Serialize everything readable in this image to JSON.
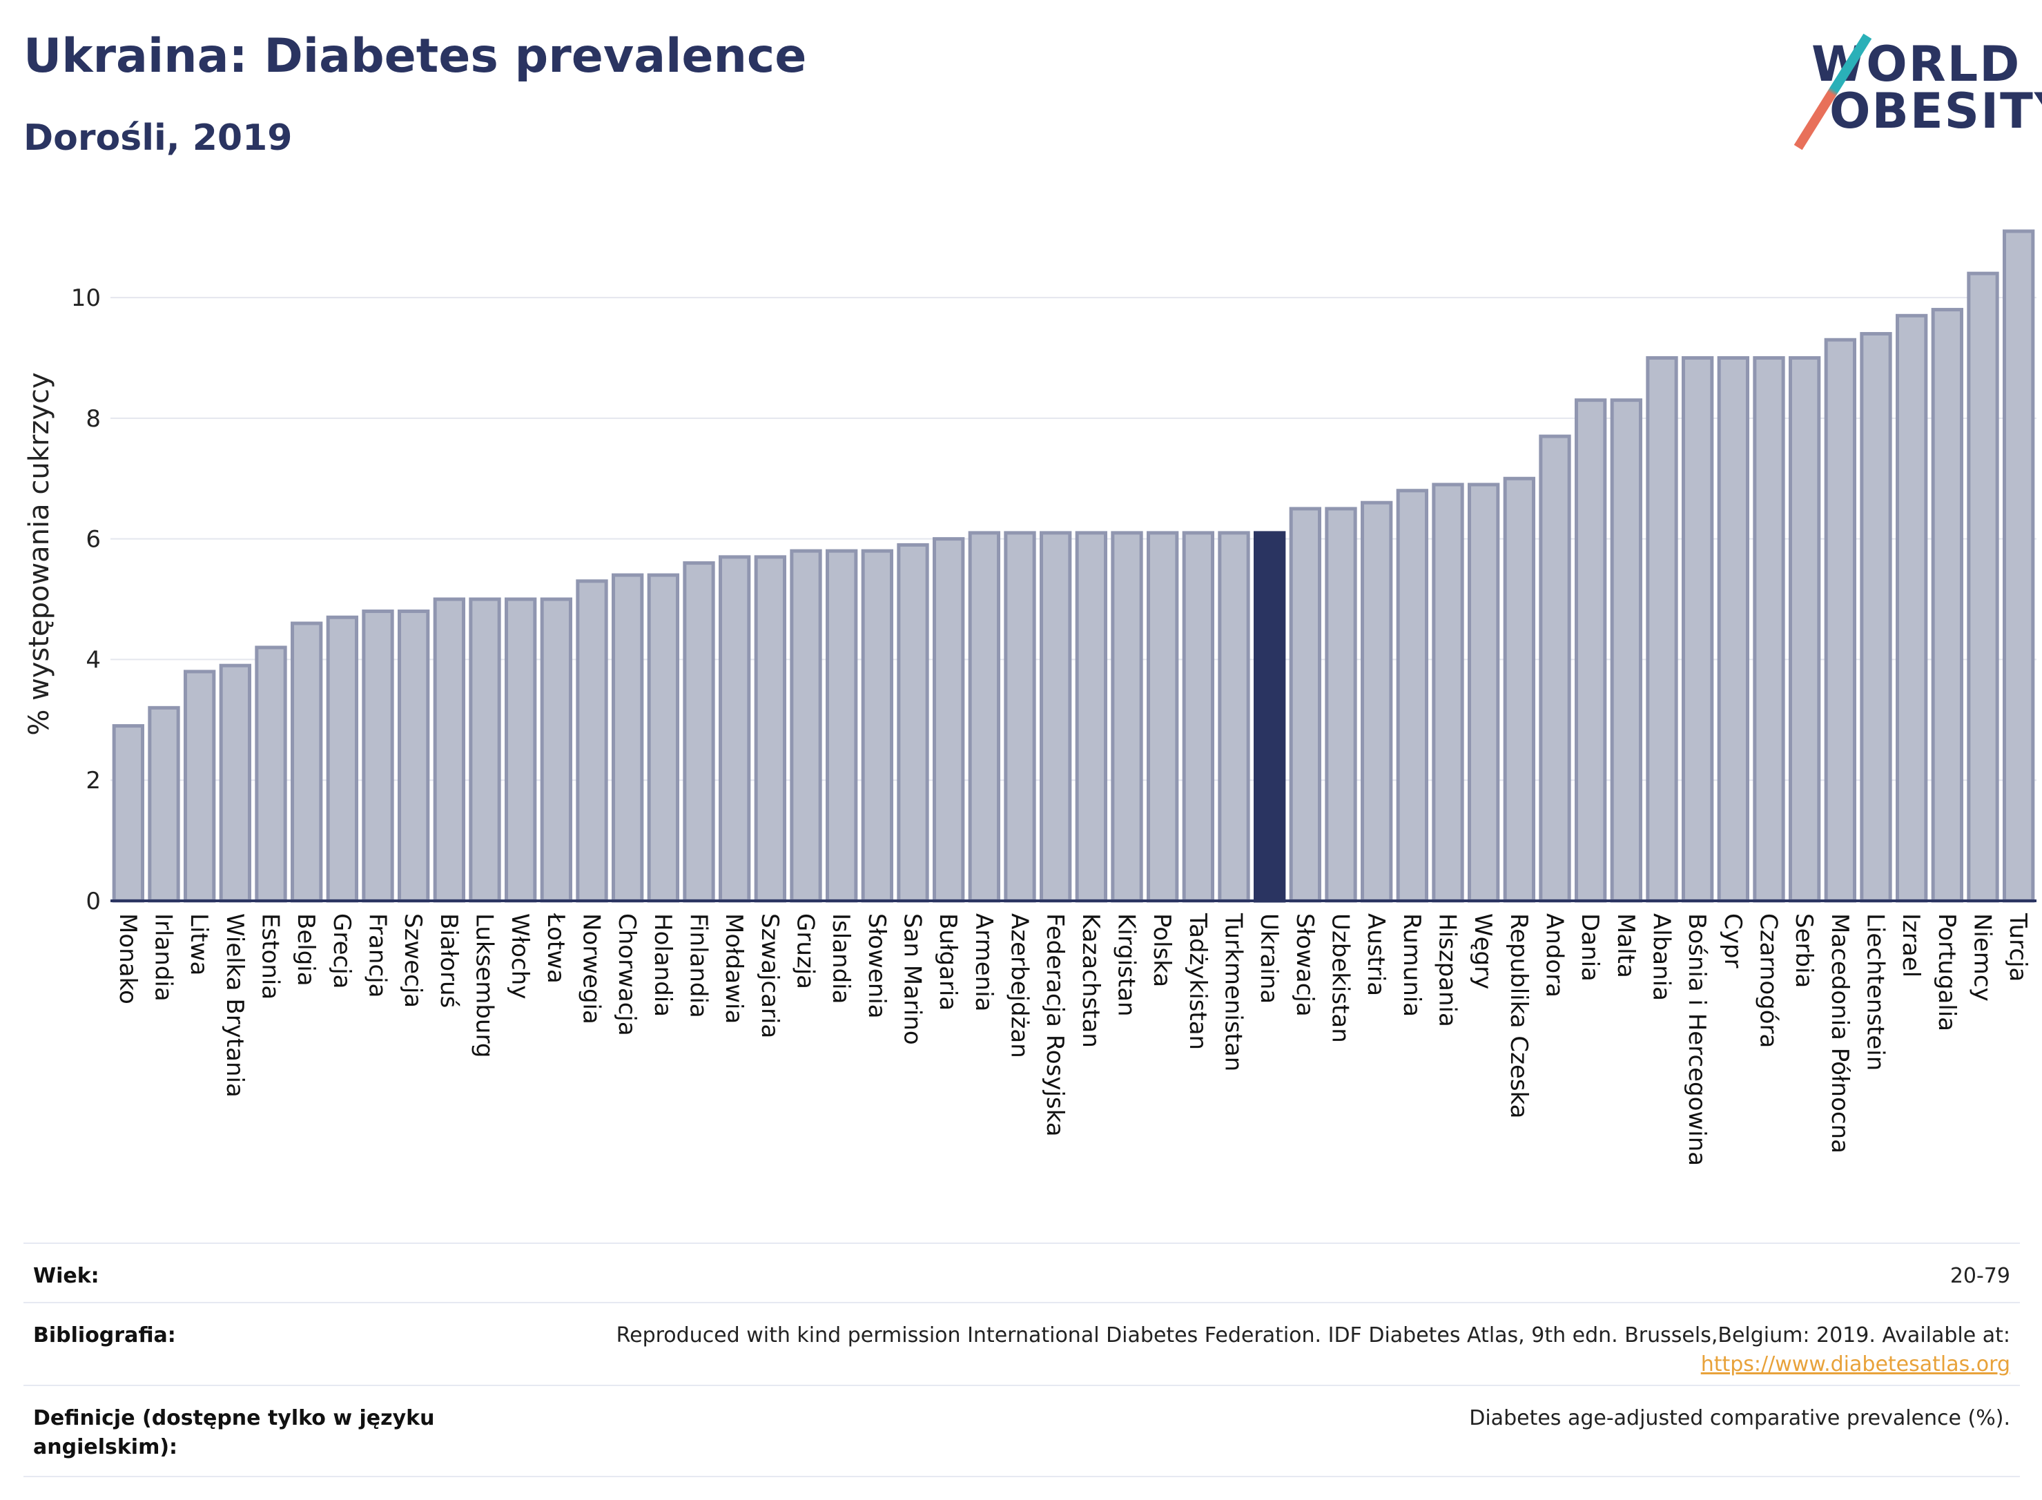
{
  "header": {
    "title": "Ukraina: Diabetes prevalence",
    "subtitle": "Dorośli, 2019"
  },
  "logo": {
    "line1": "WORLD",
    "line2": "OBESITY"
  },
  "colors": {
    "bar": "#b8bdcc",
    "bar_stroke": "#9096b0",
    "highlight": "#2a3461",
    "grid": "#e4e6ee"
  },
  "chart_data": {
    "type": "bar",
    "ylabel": "% występowania cukrzycy",
    "xlabel": "",
    "ylim": [
      0,
      11.5
    ],
    "yticks": [
      0,
      2,
      4,
      6,
      8,
      10
    ],
    "highlight": "Ukraina",
    "categories": [
      "Monako",
      "Irlandia",
      "Litwa",
      "Wielka Brytania",
      "Estonia",
      "Belgia",
      "Grecja",
      "Francja",
      "Szwecja",
      "Białoruś",
      "Luksemburg",
      "Włochy",
      "Łotwa",
      "Norwegia",
      "Chorwacja",
      "Holandia",
      "Finlandia",
      "Mołdawia",
      "Szwajcaria",
      "Gruzja",
      "Islandia",
      "Słowenia",
      "San Marino",
      "Bułgaria",
      "Armenia",
      "Azerbejdżan",
      "Federacja Rosyjska",
      "Kazachstan",
      "Kirgistan",
      "Polska",
      "Tadżykistan",
      "Turkmenistan",
      "Ukraina",
      "Słowacja",
      "Uzbekistan",
      "Austria",
      "Rumunia",
      "Hiszpania",
      "Węgry",
      "Republika Czeska",
      "Andora",
      "Dania",
      "Malta",
      "Albania",
      "Bośnia i Hercegowina",
      "Cypr",
      "Czarnogóra",
      "Serbia",
      "Macedonia Północna",
      "Liechtenstein",
      "Izrael",
      "Portugalia",
      "Niemcy",
      "Turcja"
    ],
    "values": [
      2.9,
      3.2,
      3.8,
      3.9,
      4.2,
      4.6,
      4.7,
      4.8,
      4.8,
      5.0,
      5.0,
      5.0,
      5.0,
      5.3,
      5.4,
      5.4,
      5.6,
      5.7,
      5.7,
      5.8,
      5.8,
      5.8,
      5.9,
      6.0,
      6.1,
      6.1,
      6.1,
      6.1,
      6.1,
      6.1,
      6.1,
      6.1,
      6.1,
      6.5,
      6.5,
      6.6,
      6.8,
      6.9,
      6.9,
      7.0,
      7.7,
      8.3,
      8.3,
      9.0,
      9.0,
      9.0,
      9.0,
      9.0,
      9.3,
      9.4,
      9.7,
      9.8,
      10.4,
      11.1
    ],
    "grid": true,
    "legend": "none"
  },
  "info": [
    {
      "key": "Wiek:",
      "value": "20-79"
    },
    {
      "key": "Bibliografia:",
      "value": "Reproduced with kind permission International Diabetes Federation. IDF Diabetes Atlas, 9th edn. Brussels,Belgium: 2019. Available at:",
      "link": "https://www.diabetesatlas.org"
    },
    {
      "key": "Definicje (dostępne tylko w języku angielskim):",
      "value": "Diabetes age-adjusted comparative prevalence (%)."
    }
  ]
}
